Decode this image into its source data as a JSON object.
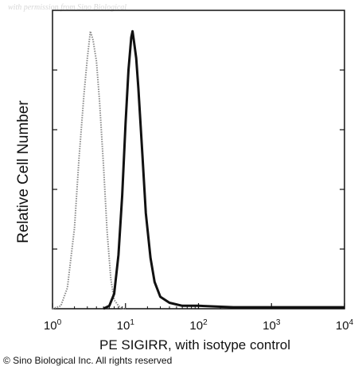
{
  "watermark": "with permission from Sino Biological",
  "copyright": "© Sino Biological Inc. All rights reserved",
  "chart_data": {
    "type": "line",
    "title": "",
    "xlabel": "PE SIGIRR, with isotype control",
    "ylabel": "Relative Cell Number",
    "x_scale": "log",
    "xlim": [
      1,
      10000
    ],
    "ylim": [
      0,
      100
    ],
    "grid": false,
    "legend": "none",
    "x_ticks": [
      {
        "value": 1,
        "base": "10",
        "exp": "0"
      },
      {
        "value": 10,
        "base": "10",
        "exp": "1"
      },
      {
        "value": 100,
        "base": "10",
        "exp": "2"
      },
      {
        "value": 1000,
        "base": "10",
        "exp": "3"
      },
      {
        "value": 10000,
        "base": "10",
        "exp": "4"
      }
    ],
    "series": [
      {
        "style": "dotted",
        "color": "#8a8a8a",
        "x": [
          1.0,
          1.3,
          1.6,
          2.0,
          2.3,
          2.7,
          3.0,
          3.3,
          3.6,
          4.0,
          4.4,
          5.0,
          5.6,
          6.3,
          7.0,
          8.0,
          9.0,
          10.0
        ],
        "y": [
          0,
          1,
          7,
          27,
          50,
          72,
          84,
          93,
          90,
          83,
          70,
          48,
          26,
          10,
          3,
          1,
          0,
          0
        ]
      },
      {
        "style": "solid",
        "color": "#111111",
        "x": [
          5.0,
          6.0,
          7.0,
          8.0,
          9.0,
          10.0,
          11.0,
          12.0,
          12.5,
          13.0,
          14.0,
          15.0,
          17.0,
          19.0,
          22.0,
          25.0,
          30.0,
          40.0,
          60.0,
          100.0,
          300.0,
          1000.0,
          3000.0,
          10000.0
        ],
        "y": [
          0,
          1,
          5,
          18,
          38,
          62,
          80,
          91,
          93,
          90,
          84,
          74,
          52,
          32,
          17,
          9,
          4,
          2,
          1,
          1,
          0.5,
          0.5,
          0.5,
          0.5
        ]
      }
    ]
  }
}
